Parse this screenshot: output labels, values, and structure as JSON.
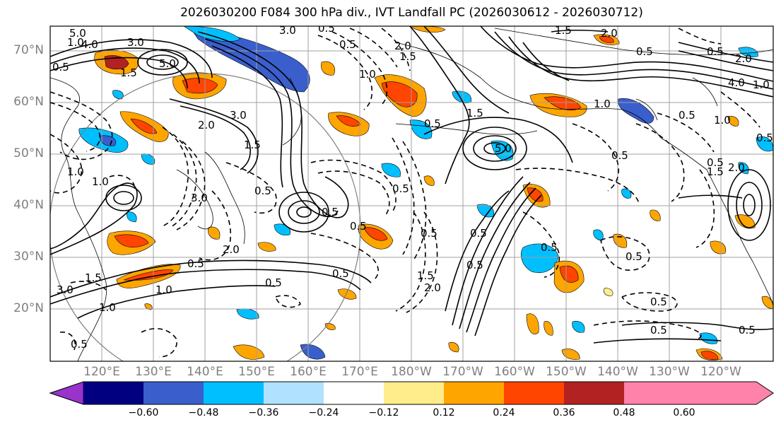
{
  "title": "2026030200 F084 300 hPa div., IVT Landfall PC (2026030612 - 2026030712)",
  "lat_labels": [
    "70°N",
    "60°N",
    "50°N",
    "40°N",
    "30°N",
    "20°N"
  ],
  "lon_labels": [
    "120°E",
    "130°E",
    "140°E",
    "150°E",
    "160°E",
    "170°E",
    "180°W",
    "170°W",
    "160°W",
    "150°W",
    "140°W",
    "130°W",
    "120°W"
  ],
  "colorbar": {
    "colors": [
      "#9933cc",
      "#000080",
      "#3a5fcd",
      "#00bfff",
      "#b0e2ff",
      "#ffffff",
      "#ffec8b",
      "#ffa500",
      "#ff4500",
      "#b22222",
      "#ff82ab"
    ],
    "tick_labels": [
      "−0.60",
      "−0.48",
      "−0.36",
      "−0.24",
      "−0.12",
      "0.12",
      "0.24",
      "0.36",
      "0.48",
      "0.60"
    ]
  },
  "contour_labels": [
    "5.0",
    "4.0",
    "3.0",
    "5.0",
    "1.5",
    "1.0",
    "0.5",
    "3.0",
    "2.0",
    "1.5",
    "0.5",
    "2.0",
    "1.5",
    "0.5",
    "1.0",
    "0.5",
    "1.5",
    "2.0",
    "0.5",
    "4.0",
    "1.0",
    "3.0",
    "1.5",
    "2.0",
    "0.5",
    "1.0",
    "0.5",
    "0.5",
    "5.0",
    "1.0",
    "0.5",
    "2.0",
    "1.5",
    "1.0",
    "0.5",
    "0.5",
    "0.5",
    "0.5",
    "0.5",
    "0.5",
    "0.5",
    "0.5",
    "0.5",
    "1.0",
    "3.0",
    "1.0",
    "2.0",
    "3.0",
    "1.0",
    "1.5",
    "1.5",
    "2.0",
    "0.5",
    "0.5",
    "0.5",
    "0.5",
    "0.5",
    "0.5",
    "0.5",
    "0.5"
  ],
  "colors": {
    "frame": "#000000",
    "grid": "#a0a0a0",
    "label_gray": "#7f7f7f",
    "coast": "#000000"
  }
}
